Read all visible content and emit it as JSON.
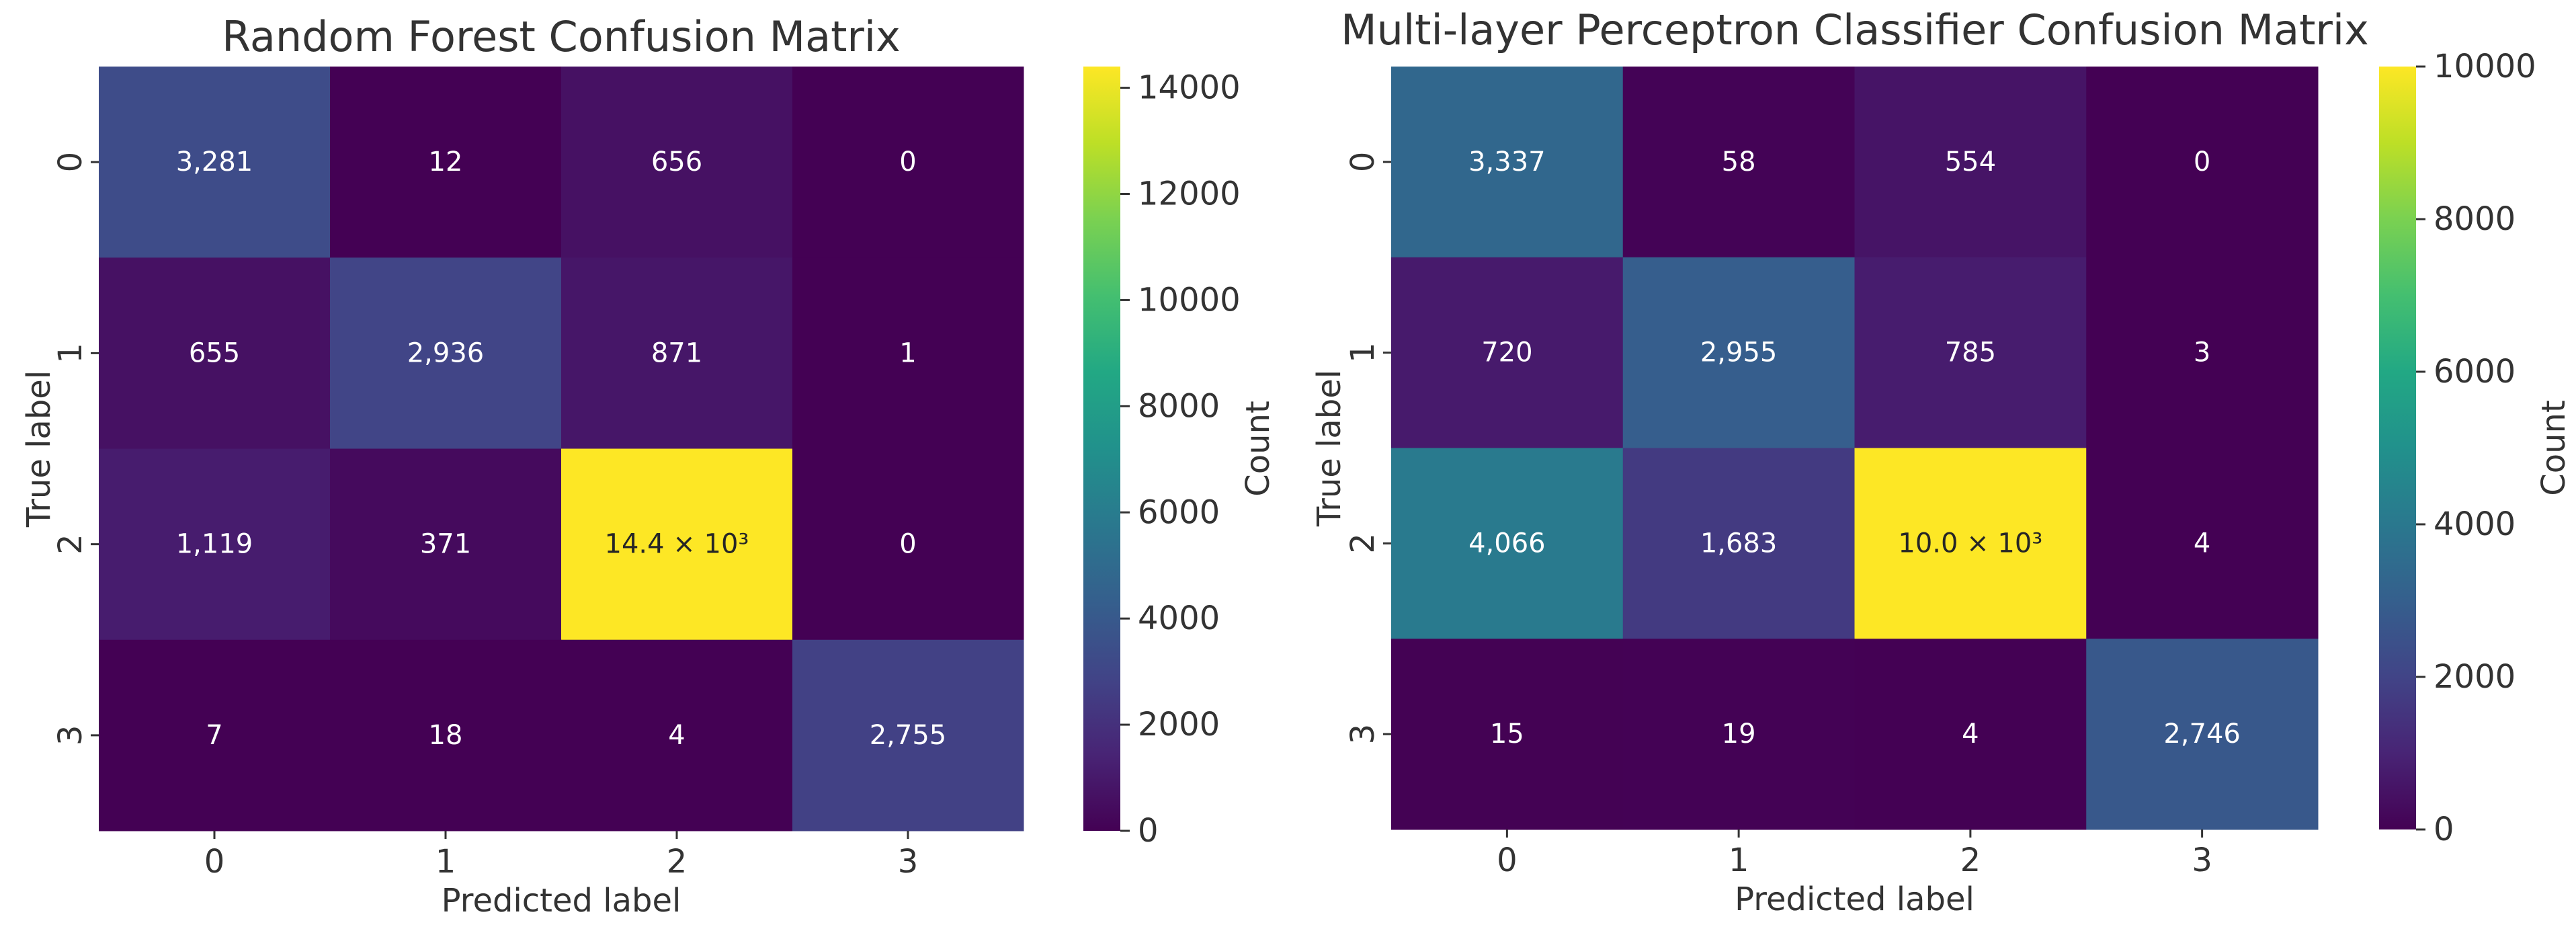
{
  "chart_data": [
    {
      "type": "heatmap",
      "title": "Random Forest Confusion Matrix",
      "xlabel": "Predicted label",
      "ylabel": "True label",
      "x_categories": [
        "0",
        "1",
        "2",
        "3"
      ],
      "y_categories": [
        "0",
        "1",
        "2",
        "3"
      ],
      "values": [
        [
          3281,
          12,
          656,
          0
        ],
        [
          655,
          2936,
          871,
          1
        ],
        [
          1119,
          371,
          14400,
          0
        ],
        [
          7,
          18,
          4,
          2755
        ]
      ],
      "cell_labels": [
        [
          "3,281",
          "12",
          "656",
          "0"
        ],
        [
          "655",
          "2,936",
          "871",
          "1"
        ],
        [
          "1,119",
          "371",
          "14.4 × 10³",
          "0"
        ],
        [
          "7",
          "18",
          "4",
          "2,755"
        ]
      ],
      "colormap": "viridis",
      "colorbar": {
        "label": "Count",
        "range": [
          0,
          14400
        ],
        "ticks": [
          0,
          2000,
          4000,
          6000,
          8000,
          10000,
          12000,
          14000
        ],
        "tick_labels": [
          "0",
          "2000",
          "4000",
          "6000",
          "8000",
          "10000",
          "12000",
          "14000"
        ]
      }
    },
    {
      "type": "heatmap",
      "title": "Multi-layer Perceptron Classifier Confusion Matrix",
      "xlabel": "Predicted label",
      "ylabel": "True label",
      "x_categories": [
        "0",
        "1",
        "2",
        "3"
      ],
      "y_categories": [
        "0",
        "1",
        "2",
        "3"
      ],
      "values": [
        [
          3337,
          58,
          554,
          0
        ],
        [
          720,
          2955,
          785,
          3
        ],
        [
          4066,
          1683,
          10000,
          4
        ],
        [
          15,
          19,
          4,
          2746
        ]
      ],
      "cell_labels": [
        [
          "3,337",
          "58",
          "554",
          "0"
        ],
        [
          "720",
          "2,955",
          "785",
          "3"
        ],
        [
          "4,066",
          "1,683",
          "10.0 × 10³",
          "4"
        ],
        [
          "15",
          "19",
          "4",
          "2,746"
        ]
      ],
      "colormap": "viridis",
      "colorbar": {
        "label": "Count",
        "range": [
          0,
          10000
        ],
        "ticks": [
          0,
          2000,
          4000,
          6000,
          8000,
          10000
        ],
        "tick_labels": [
          "0",
          "2000",
          "4000",
          "6000",
          "8000",
          "10000"
        ]
      }
    }
  ]
}
